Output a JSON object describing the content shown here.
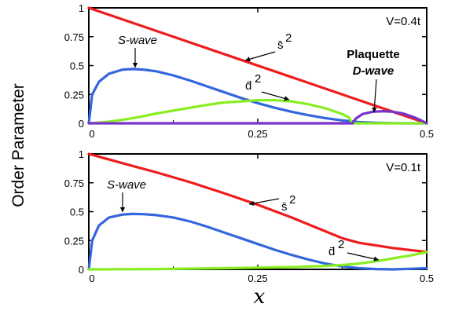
{
  "figure": {
    "ylabel": "Order Parameter",
    "xlabel": "x"
  },
  "colors": {
    "s_bar_sq": "#ee1c1c",
    "s_wave": "#3366dd",
    "d_bar_sq": "#88ee22",
    "plaquette": "#7733cc"
  },
  "chart_data": [
    {
      "type": "line",
      "xlim": [
        0,
        0.5
      ],
      "ylim": [
        0,
        1
      ],
      "xticks": [
        "0",
        "0.25",
        "0.5"
      ],
      "yticks": [
        "0",
        "0.25",
        "0.5",
        "0.75",
        "1"
      ],
      "legend_label": "V=0.4t",
      "labels": {
        "s_wave": "S-wave",
        "s_bar": "s̄",
        "d_bar": "d̄",
        "sup": "2",
        "plaquette_1": "Plaquette",
        "plaquette_2": "D-wave"
      },
      "series": [
        {
          "key": "sbar2",
          "color": "#ee1c1c",
          "x": [
            0,
            0.1,
            0.2,
            0.3,
            0.4,
            0.5
          ],
          "y": [
            1.0,
            0.8,
            0.6,
            0.4,
            0.2,
            0.0
          ]
        },
        {
          "key": "swave",
          "color": "#3366dd",
          "x": [
            0,
            0.005,
            0.015,
            0.03,
            0.05,
            0.065,
            0.08,
            0.1,
            0.125,
            0.15,
            0.175,
            0.2,
            0.225,
            0.25,
            0.275,
            0.3,
            0.325,
            0.35,
            0.375,
            0.4,
            0.425,
            0.45,
            0.475,
            0.5
          ],
          "y": [
            0,
            0.25,
            0.36,
            0.43,
            0.465,
            0.47,
            0.465,
            0.45,
            0.415,
            0.37,
            0.32,
            0.27,
            0.22,
            0.175,
            0.135,
            0.1,
            0.07,
            0.045,
            0.025,
            0.01,
            0.004,
            0.001,
            0.0,
            0.0
          ]
        },
        {
          "key": "dbar2",
          "color": "#88ee22",
          "x": [
            0,
            0.025,
            0.05,
            0.075,
            0.1,
            0.125,
            0.15,
            0.175,
            0.2,
            0.225,
            0.25,
            0.275,
            0.3,
            0.325,
            0.35,
            0.375,
            0.385,
            0.39,
            0.4,
            0.425,
            0.45,
            0.475,
            0.5
          ],
          "y": [
            0,
            0.01,
            0.03,
            0.055,
            0.085,
            0.11,
            0.135,
            0.16,
            0.18,
            0.19,
            0.2,
            0.2,
            0.19,
            0.165,
            0.13,
            0.08,
            0.05,
            0.0,
            0.0,
            0.0,
            0.0,
            0.0,
            0.0
          ]
        },
        {
          "key": "plaq",
          "color": "#7733cc",
          "x": [
            0,
            0.39,
            0.395,
            0.405,
            0.42,
            0.435,
            0.45,
            0.465,
            0.48,
            0.49,
            0.5
          ],
          "y": [
            0,
            0,
            0.04,
            0.08,
            0.1,
            0.105,
            0.1,
            0.085,
            0.055,
            0.03,
            0.0
          ]
        }
      ]
    },
    {
      "type": "line",
      "xlim": [
        0,
        0.5
      ],
      "ylim": [
        0,
        1
      ],
      "xticks": [
        "0",
        "0.25",
        "0.5"
      ],
      "yticks": [
        "0",
        "0.25",
        "0.5",
        "0.75",
        "1"
      ],
      "legend_label": "V=0.1t",
      "labels": {
        "s_wave": "S-wave",
        "s_bar": "s̄",
        "d_bar": "d̄",
        "sup": "2"
      },
      "series": [
        {
          "key": "sbar2",
          "color": "#ee1c1c",
          "x": [
            0,
            0.05,
            0.1,
            0.15,
            0.2,
            0.25,
            0.3,
            0.35,
            0.375,
            0.4,
            0.45,
            0.5
          ],
          "y": [
            1.0,
            0.92,
            0.84,
            0.755,
            0.66,
            0.56,
            0.45,
            0.33,
            0.27,
            0.23,
            0.185,
            0.15
          ]
        },
        {
          "key": "swave",
          "color": "#3366dd",
          "x": [
            0,
            0.005,
            0.015,
            0.03,
            0.05,
            0.065,
            0.08,
            0.1,
            0.125,
            0.15,
            0.175,
            0.2,
            0.225,
            0.25,
            0.275,
            0.3,
            0.325,
            0.35,
            0.375,
            0.4,
            0.425,
            0.45,
            0.475,
            0.5
          ],
          "y": [
            0,
            0.25,
            0.38,
            0.45,
            0.475,
            0.48,
            0.478,
            0.47,
            0.45,
            0.415,
            0.37,
            0.32,
            0.27,
            0.22,
            0.17,
            0.125,
            0.085,
            0.05,
            0.025,
            0.01,
            0.003,
            0.0,
            0.005,
            0.01
          ]
        },
        {
          "key": "dbar2",
          "color": "#88ee22",
          "x": [
            0,
            0.1,
            0.2,
            0.25,
            0.3,
            0.35,
            0.38,
            0.4,
            0.425,
            0.45,
            0.475,
            0.5
          ],
          "y": [
            0,
            0.003,
            0.01,
            0.015,
            0.02,
            0.03,
            0.04,
            0.05,
            0.07,
            0.095,
            0.12,
            0.15
          ]
        }
      ]
    }
  ]
}
